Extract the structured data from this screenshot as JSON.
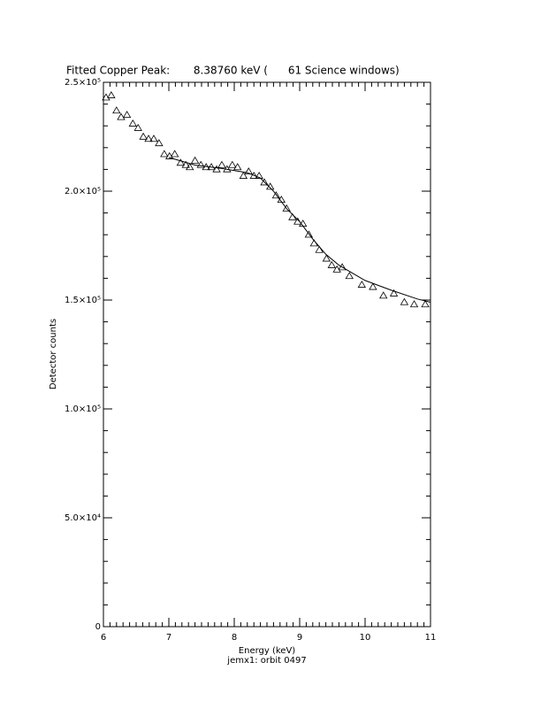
{
  "chart_data": {
    "type": "scatter",
    "title": "Fitted Copper Peak:       8.38760 keV (      61 Science windows)",
    "x_label": "Energy (keV)",
    "y_label": "Detector counts",
    "subtitle": "jemx1: orbit 0497",
    "xlim": [
      6,
      11
    ],
    "xticks": [
      6,
      7,
      8,
      9,
      10,
      11
    ],
    "ylim": [
      0,
      250000
    ],
    "yticks": [
      0,
      {
        "value": 50000,
        "label": "5.0×10⁴"
      },
      {
        "value": 100000,
        "label": "1.0×10⁵"
      },
      {
        "value": 150000,
        "label": "1.5×10⁵"
      },
      {
        "value": 200000,
        "label": "2.0×10⁵"
      },
      {
        "value": 250000,
        "label": "2.5×10⁵"
      }
    ],
    "series": [
      {
        "marker": "triangle",
        "color": "#000000",
        "x": [
          6.04,
          6.12,
          6.2,
          6.27,
          6.36,
          6.45,
          6.53,
          6.61,
          6.69,
          6.77,
          6.85,
          6.93,
          7.01,
          7.09,
          7.18,
          7.26,
          7.32,
          7.4,
          7.49,
          7.57,
          7.65,
          7.73,
          7.81,
          7.89,
          7.97,
          8.05,
          8.14,
          8.22,
          8.3,
          8.38,
          8.46,
          8.55,
          8.64,
          8.72,
          8.8,
          8.89,
          8.97,
          9.05,
          9.14,
          9.22,
          9.3,
          9.41,
          9.49,
          9.57,
          9.65,
          9.76,
          9.95,
          10.12,
          10.28,
          10.44,
          10.6,
          10.75,
          10.92
        ],
        "values": [
          243000,
          244000,
          237000,
          234000,
          235000,
          231000,
          229000,
          225000,
          224000,
          224000,
          222000,
          217000,
          216000,
          217000,
          213000,
          212000,
          211000,
          214000,
          212000,
          211000,
          211000,
          210000,
          212000,
          210000,
          212000,
          211000,
          207000,
          209000,
          207000,
          207000,
          204000,
          202000,
          198000,
          196000,
          192000,
          188000,
          186000,
          185000,
          180000,
          176000,
          173000,
          169000,
          166000,
          164000,
          165000,
          161000,
          157000,
          156000,
          152000,
          153000,
          149000,
          148000,
          148000
        ]
      },
      {
        "marker": "line",
        "color": "#000000",
        "x": [
          7.0,
          7.4,
          7.8,
          8.2,
          8.4,
          8.6,
          8.8,
          9.0,
          9.2,
          9.4,
          9.6,
          9.8,
          10.0,
          10.4,
          10.8,
          11.0
        ],
        "values": [
          215500,
          212000,
          210500,
          208500,
          206000,
          200000,
          192000,
          186000,
          178000,
          171000,
          166000,
          162500,
          159000,
          154500,
          150500,
          149000
        ]
      }
    ]
  }
}
